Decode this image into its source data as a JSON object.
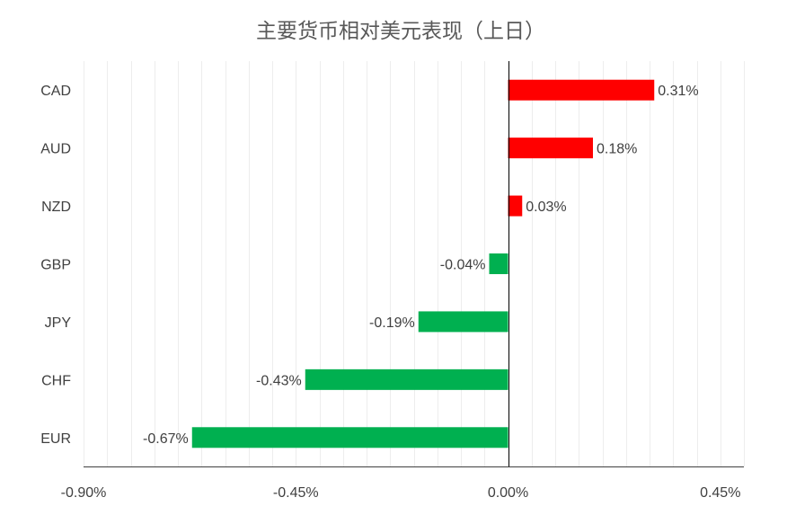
{
  "chart_data": {
    "type": "bar",
    "orientation": "horizontal",
    "title": "主要货币相对美元表现（上日）",
    "categories": [
      "CAD",
      "AUD",
      "NZD",
      "GBP",
      "JPY",
      "CHF",
      "EUR"
    ],
    "values": [
      0.31,
      0.18,
      0.03,
      -0.04,
      -0.19,
      -0.43,
      -0.67
    ],
    "data_labels": [
      "0.31%",
      "0.18%",
      "0.03%",
      "-0.04%",
      "-0.19%",
      "-0.43%",
      "-0.67%"
    ],
    "xlim": [
      -0.9,
      0.5
    ],
    "x_ticks": [
      -0.9,
      -0.45,
      0.0,
      0.45
    ],
    "x_tick_labels": [
      "-0.90%",
      "-0.45%",
      "0.00%",
      "0.45%"
    ],
    "xlabel": "",
    "ylabel": "",
    "grid": true,
    "colors": {
      "positive": "#FF0000",
      "negative": "#00B050",
      "grid": "#EDEDED",
      "axis": "#404040"
    }
  }
}
